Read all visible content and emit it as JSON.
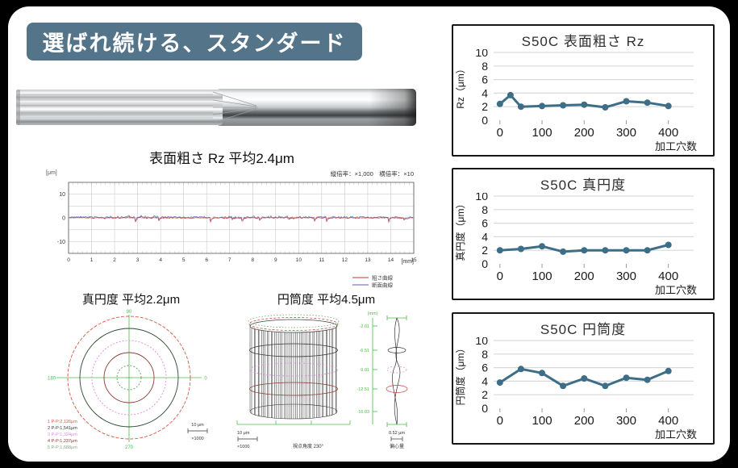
{
  "colors": {
    "banner_bg": "#54748a",
    "accent_line": "#3d6e87",
    "grid": "#d9d9d9",
    "panel_border": "#161616",
    "crosshair_green": "#4cbb4c"
  },
  "banner": {
    "text": "選ばれ続ける、スタンダード"
  },
  "roughness_profile": {
    "title": "表面粗さ Rz 平均2.4μm",
    "unit_label": "[μm]",
    "magnification_label": "縦倍率：×1,000　横倍率：×10",
    "y_ticks": [
      10,
      0,
      -10
    ],
    "x_ticks": [
      0,
      1,
      2,
      3,
      4,
      5,
      6,
      7,
      8,
      9,
      10,
      11,
      12,
      13,
      14,
      15
    ],
    "x_unit": "[mm]",
    "legend": [
      {
        "label": "粗さ曲線",
        "color": "#c23b3b"
      },
      {
        "label": "断面曲線",
        "color": "#5c5ca8"
      }
    ]
  },
  "roundness": {
    "title": "真円度 平均2.2μm",
    "axis_labels": {
      "top": "90",
      "left": "180",
      "bottom": "270",
      "right": "0"
    },
    "circles": [
      {
        "r": 76,
        "color": "#d95744",
        "dash": "4 2"
      },
      {
        "r": 61,
        "color": "#2b4a2e",
        "dash": ""
      },
      {
        "r": 46,
        "color": "#de8ade",
        "dash": "2 2"
      },
      {
        "r": 31,
        "color": "#8a3a30",
        "dash": ""
      },
      {
        "r": 15,
        "color": "#57a257",
        "dash": "2 2"
      }
    ],
    "legend": [
      {
        "label": "1 P-P:2,126μm",
        "color": "#d95744"
      },
      {
        "label": "2 P-P:1,541μm",
        "color": "#333333"
      },
      {
        "label": "3 P-P:1,324μm",
        "color": "#de8ade"
      },
      {
        "label": "4 P-P:1,237μm",
        "color": "#8a3a30"
      },
      {
        "label": "5 P-P:1,688μm",
        "color": "#8aa08a"
      }
    ],
    "scale_label": "10 μm",
    "mag_label": "×1000"
  },
  "cylindricity": {
    "title": "円筒度 平均4.5μm",
    "axis_unit": "(mm)",
    "depth_ticks": [
      "-2.01",
      "-6.51",
      "-9.01",
      "-12.51",
      "-16.03"
    ],
    "rings": [
      {
        "y": 52,
        "color": "#333333",
        "dash": ""
      },
      {
        "y": 76,
        "color": "#de8ade",
        "dash": "2 2"
      },
      {
        "y": 100,
        "color": "#8a3a30",
        "dash": ""
      }
    ],
    "scale_label": "10 μm",
    "mag_label": "×1000",
    "view_angle_label": "視点角度 230°",
    "ecc_scale_label": "0.52 μm",
    "ecc_label": "偏心量"
  },
  "chart_data": [
    {
      "type": "line",
      "title": "S50C 表面粗さ Rz",
      "ylabel": "Rz（μm）",
      "xlabel": "加工穴数",
      "x": [
        0,
        25,
        50,
        100,
        150,
        200,
        250,
        300,
        350,
        400
      ],
      "values": [
        2.4,
        3.7,
        2.0,
        2.1,
        2.2,
        2.3,
        1.9,
        2.8,
        2.6,
        2.1
      ],
      "ylim": [
        0,
        10
      ],
      "yticks": [
        0,
        2,
        4,
        6,
        8,
        10
      ],
      "xticks": [
        0,
        100,
        200,
        300,
        400
      ],
      "grid": true,
      "legend_position": "none",
      "line_color": "#3d6e87"
    },
    {
      "type": "line",
      "title": "S50C 真円度",
      "ylabel": "真円度（μm）",
      "xlabel": "加工穴数",
      "x": [
        0,
        50,
        100,
        150,
        200,
        250,
        300,
        350,
        400
      ],
      "values": [
        2.0,
        2.2,
        2.6,
        1.8,
        2.0,
        2.0,
        2.0,
        2.0,
        2.8
      ],
      "ylim": [
        0,
        10
      ],
      "yticks": [
        0,
        2,
        4,
        6,
        8,
        10
      ],
      "xticks": [
        0,
        100,
        200,
        300,
        400
      ],
      "grid": true,
      "legend_position": "none",
      "line_color": "#3d6e87"
    },
    {
      "type": "line",
      "title": "S50C 円筒度",
      "ylabel": "円筒度（μm）",
      "xlabel": "加工穴数",
      "x": [
        0,
        50,
        100,
        150,
        200,
        250,
        300,
        350,
        400
      ],
      "values": [
        3.8,
        5.8,
        5.2,
        3.3,
        4.4,
        3.3,
        4.5,
        4.2,
        5.5
      ],
      "ylim": [
        0,
        10
      ],
      "yticks": [
        0,
        2,
        4,
        6,
        8,
        10
      ],
      "xticks": [
        0,
        100,
        200,
        300,
        400
      ],
      "grid": true,
      "legend_position": "none",
      "line_color": "#3d6e87"
    }
  ]
}
